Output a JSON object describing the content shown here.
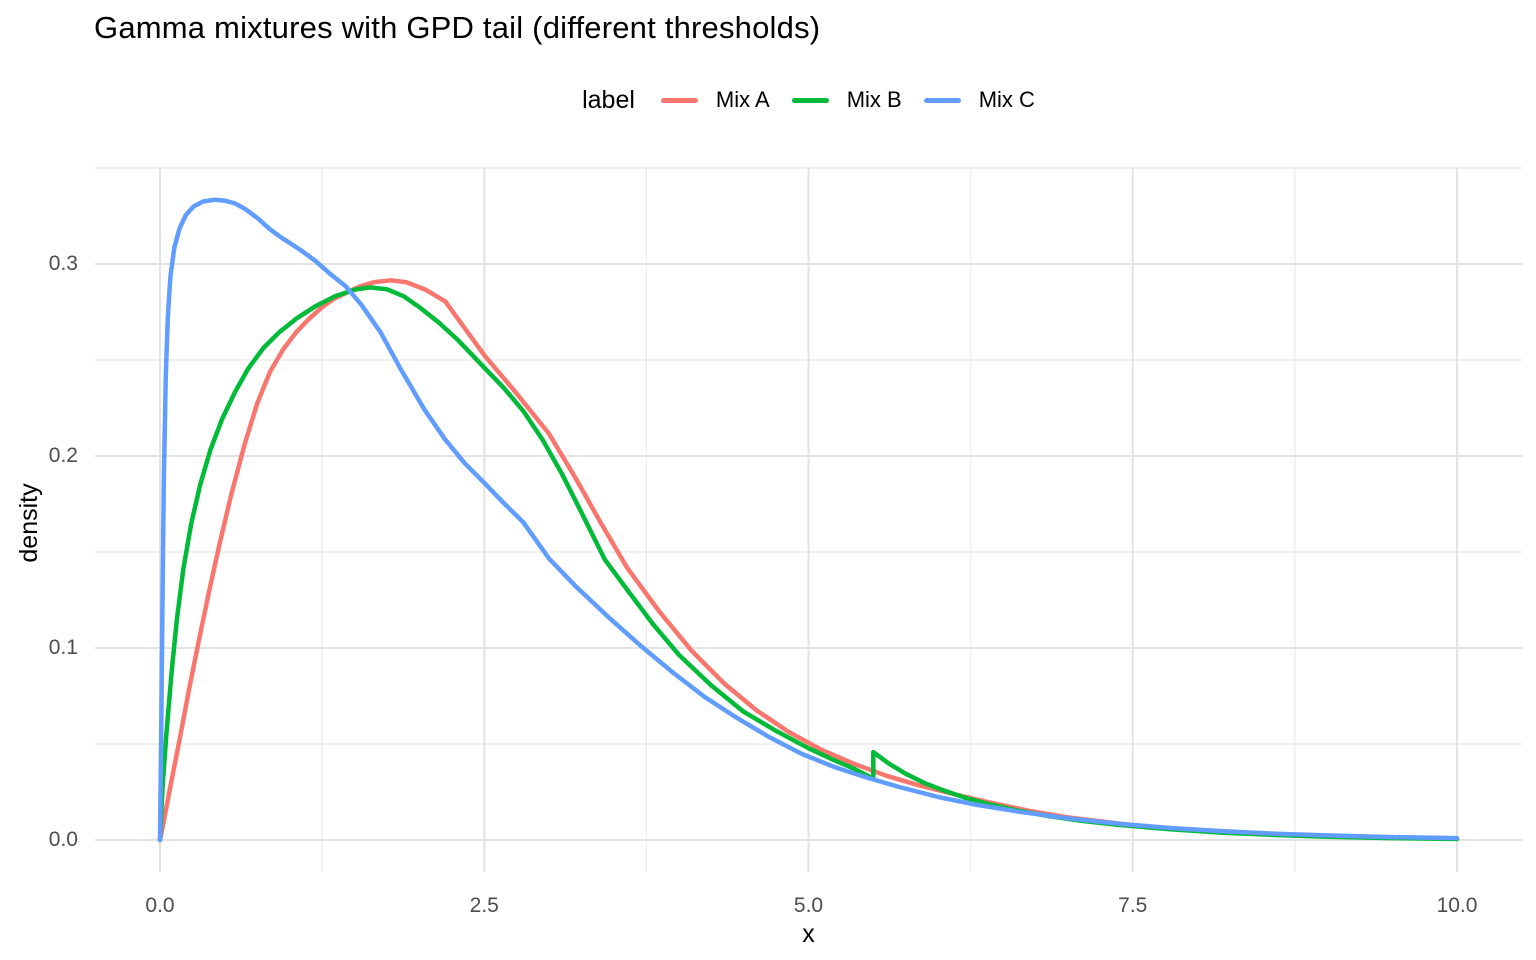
{
  "title": "Gamma mixtures with GPD tail (different thresholds)",
  "legend": {
    "title": "label",
    "entries": [
      {
        "label": "Mix A",
        "color": "#F8766D"
      },
      {
        "label": "Mix B",
        "color": "#00BA38"
      },
      {
        "label": "Mix C",
        "color": "#619CFF"
      }
    ]
  },
  "style": {
    "background": "#FFFFFF",
    "grid_major_color": "#E3E3E3",
    "grid_minor_color": "#ECECEC",
    "tick_label_color": "#4D4D4D",
    "line_width": 4.5
  },
  "chart_data": {
    "type": "line",
    "title": "Gamma mixtures with GPD tail (different thresholds)",
    "xlabel": "x",
    "ylabel": "density",
    "xlim": [
      0,
      10
    ],
    "ylim": [
      0,
      0.35
    ],
    "grid": true,
    "legend_position": "top",
    "x_ticks": [
      0,
      2.5,
      5,
      7.5,
      10
    ],
    "x_tick_labels": [
      "0.0",
      "2.5",
      "5.0",
      "7.5",
      "10.0"
    ],
    "x_minor_ticks": [
      1.25,
      3.75,
      6.25,
      8.75
    ],
    "y_ticks": [
      0,
      0.1,
      0.2,
      0.3
    ],
    "y_tick_labels": [
      "0.0",
      "0.1",
      "0.2",
      "0.3"
    ],
    "y_minor_ticks": [
      0.05,
      0.15,
      0.25,
      0.35
    ],
    "note": "Mix B has an upward density jump at x = 5.5 (GPD tail threshold); all curves start at (0,0).",
    "series": [
      {
        "name": "Mix A",
        "color": "#F8766D",
        "points": [
          [
            0,
            0
          ],
          [
            0.03,
            0.01
          ],
          [
            0.08,
            0.028
          ],
          [
            0.15,
            0.052
          ],
          [
            0.22,
            0.077
          ],
          [
            0.3,
            0.104
          ],
          [
            0.38,
            0.13
          ],
          [
            0.46,
            0.1545
          ],
          [
            0.55,
            0.18
          ],
          [
            0.65,
            0.2055
          ],
          [
            0.75,
            0.2275
          ],
          [
            0.85,
            0.244
          ],
          [
            0.95,
            0.2555
          ],
          [
            1.05,
            0.2645
          ],
          [
            1.15,
            0.2715
          ],
          [
            1.25,
            0.2775
          ],
          [
            1.35,
            0.2822
          ],
          [
            1.45,
            0.2855
          ],
          [
            1.55,
            0.2885
          ],
          [
            1.65,
            0.2905
          ],
          [
            1.78,
            0.2915
          ],
          [
            1.9,
            0.2905
          ],
          [
            2.05,
            0.2865
          ],
          [
            2.2,
            0.2805
          ],
          [
            2.35,
            0.2665
          ],
          [
            2.5,
            0.2525
          ],
          [
            2.75,
            0.2325
          ],
          [
            3.0,
            0.2115
          ],
          [
            3.2,
            0.189
          ],
          [
            3.4,
            0.165
          ],
          [
            3.6,
            0.142
          ],
          [
            3.85,
            0.119
          ],
          [
            4.1,
            0.0985
          ],
          [
            4.35,
            0.0815
          ],
          [
            4.6,
            0.0675
          ],
          [
            4.85,
            0.0562
          ],
          [
            5.1,
            0.047
          ],
          [
            5.35,
            0.0397
          ],
          [
            5.6,
            0.0335
          ],
          [
            5.85,
            0.0285
          ],
          [
            6.1,
            0.0242
          ],
          [
            6.4,
            0.0195
          ],
          [
            6.7,
            0.0152
          ],
          [
            7.0,
            0.0118
          ],
          [
            7.5,
            0.0077
          ],
          [
            8.0,
            0.005
          ],
          [
            8.5,
            0.0033
          ],
          [
            9.0,
            0.0021
          ],
          [
            9.5,
            0.0013
          ],
          [
            10,
            0.0008
          ]
        ]
      },
      {
        "name": "Mix B",
        "color": "#00BA38",
        "points": [
          [
            0,
            0
          ],
          [
            0.02,
            0.028
          ],
          [
            0.05,
            0.056
          ],
          [
            0.09,
            0.088
          ],
          [
            0.13,
            0.115
          ],
          [
            0.18,
            0.141
          ],
          [
            0.24,
            0.1645
          ],
          [
            0.31,
            0.185
          ],
          [
            0.39,
            0.2035
          ],
          [
            0.48,
            0.2195
          ],
          [
            0.58,
            0.2335
          ],
          [
            0.68,
            0.2455
          ],
          [
            0.8,
            0.2565
          ],
          [
            0.92,
            0.2645
          ],
          [
            1.05,
            0.2715
          ],
          [
            1.2,
            0.278
          ],
          [
            1.35,
            0.2832
          ],
          [
            1.5,
            0.2866
          ],
          [
            1.62,
            0.2878
          ],
          [
            1.75,
            0.2868
          ],
          [
            1.88,
            0.2832
          ],
          [
            2.0,
            0.2775
          ],
          [
            2.15,
            0.2695
          ],
          [
            2.3,
            0.2602
          ],
          [
            2.5,
            0.246
          ],
          [
            2.65,
            0.2355
          ],
          [
            2.8,
            0.2235
          ],
          [
            2.95,
            0.2085
          ],
          [
            3.1,
            0.1905
          ],
          [
            3.25,
            0.1705
          ],
          [
            3.43,
            0.146
          ],
          [
            3.6,
            0.1305
          ],
          [
            3.8,
            0.1125
          ],
          [
            4.0,
            0.0965
          ],
          [
            4.25,
            0.0805
          ],
          [
            4.5,
            0.0668
          ],
          [
            4.75,
            0.0568
          ],
          [
            5.0,
            0.0478
          ],
          [
            5.2,
            0.0415
          ],
          [
            5.35,
            0.0372
          ],
          [
            5.5,
            0.032
          ],
          [
            5.5,
            0.0458
          ],
          [
            5.62,
            0.0398
          ],
          [
            5.75,
            0.0345
          ],
          [
            5.9,
            0.0295
          ],
          [
            6.05,
            0.0256
          ],
          [
            6.2,
            0.0222
          ],
          [
            6.4,
            0.0185
          ],
          [
            6.6,
            0.0155
          ],
          [
            6.85,
            0.0125
          ],
          [
            7.1,
            0.01
          ],
          [
            7.4,
            0.0078
          ],
          [
            7.8,
            0.0055
          ],
          [
            8.2,
            0.0038
          ],
          [
            8.6,
            0.0026
          ],
          [
            9.0,
            0.0017
          ],
          [
            9.5,
            0.001
          ],
          [
            10,
            0.0005
          ]
        ]
      },
      {
        "name": "Mix C",
        "color": "#619CFF",
        "points": [
          [
            0,
            0
          ],
          [
            0.01,
            0.06
          ],
          [
            0.02,
            0.13
          ],
          [
            0.03,
            0.19
          ],
          [
            0.045,
            0.242
          ],
          [
            0.06,
            0.272
          ],
          [
            0.08,
            0.2935
          ],
          [
            0.11,
            0.3085
          ],
          [
            0.15,
            0.3185
          ],
          [
            0.2,
            0.3255
          ],
          [
            0.26,
            0.33
          ],
          [
            0.33,
            0.3325
          ],
          [
            0.42,
            0.3335
          ],
          [
            0.5,
            0.333
          ],
          [
            0.58,
            0.3315
          ],
          [
            0.66,
            0.3285
          ],
          [
            0.75,
            0.324
          ],
          [
            0.85,
            0.318
          ],
          [
            0.93,
            0.314
          ],
          [
            1.0,
            0.311
          ],
          [
            1.1,
            0.3065
          ],
          [
            1.2,
            0.3015
          ],
          [
            1.3,
            0.2955
          ],
          [
            1.43,
            0.2885
          ],
          [
            1.55,
            0.279
          ],
          [
            1.7,
            0.2645
          ],
          [
            1.85,
            0.246
          ],
          [
            2.04,
            0.224
          ],
          [
            2.2,
            0.2085
          ],
          [
            2.35,
            0.1962
          ],
          [
            2.5,
            0.186
          ],
          [
            2.65,
            0.1755
          ],
          [
            2.8,
            0.1655
          ],
          [
            3.0,
            0.1465
          ],
          [
            3.2,
            0.1325
          ],
          [
            3.45,
            0.1165
          ],
          [
            3.7,
            0.1015
          ],
          [
            3.95,
            0.0875
          ],
          [
            4.2,
            0.0745
          ],
          [
            4.45,
            0.0635
          ],
          [
            4.7,
            0.0535
          ],
          [
            4.95,
            0.0448
          ],
          [
            5.2,
            0.038
          ],
          [
            5.45,
            0.0325
          ],
          [
            5.7,
            0.0276
          ],
          [
            6.0,
            0.0224
          ],
          [
            6.3,
            0.0183
          ],
          [
            6.6,
            0.015
          ],
          [
            7.0,
            0.0113
          ],
          [
            7.4,
            0.0084
          ],
          [
            7.8,
            0.0062
          ],
          [
            8.2,
            0.0046
          ],
          [
            8.6,
            0.0033
          ],
          [
            9.0,
            0.0024
          ],
          [
            9.5,
            0.0015
          ],
          [
            10,
            0.001
          ]
        ]
      }
    ]
  }
}
